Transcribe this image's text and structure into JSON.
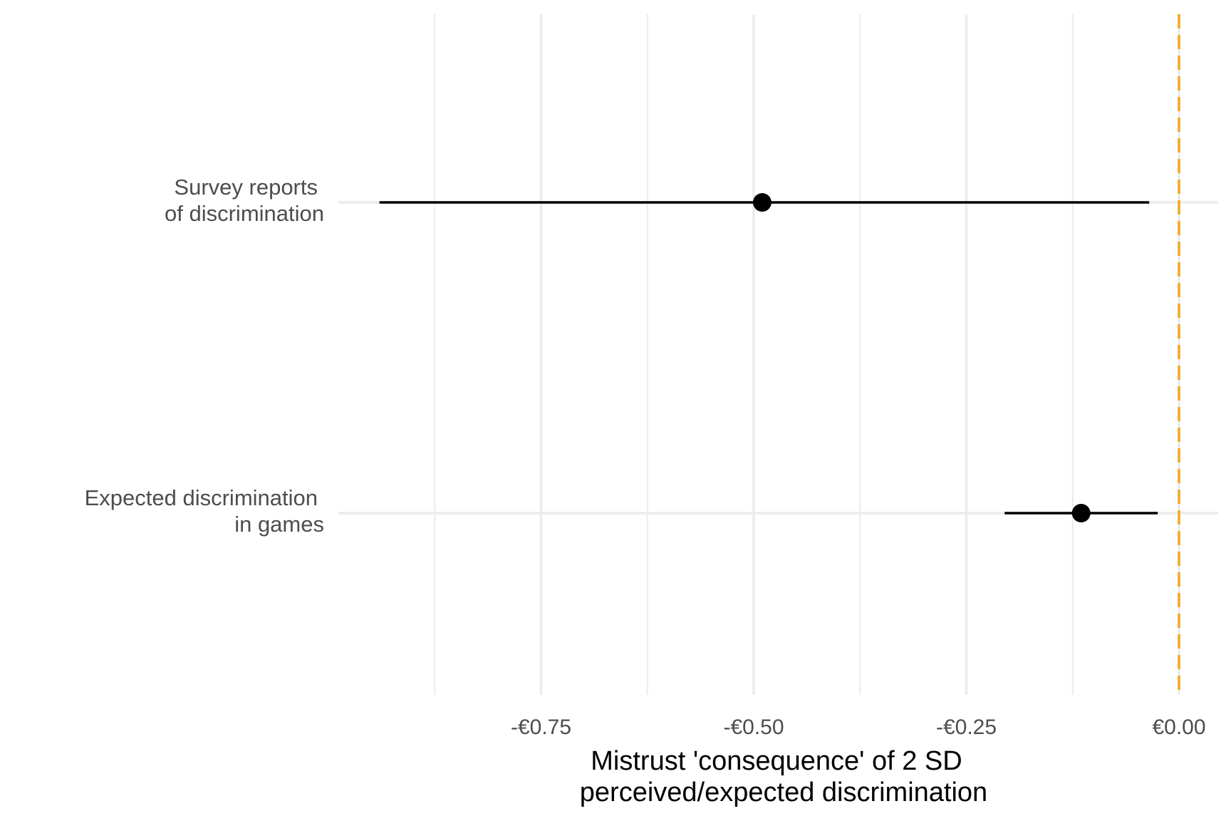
{
  "chart_data": {
    "type": "forest",
    "title": "",
    "xlabel_lines": [
      "Mistrust 'consequence' of 2 SD",
      "perceived/expected discrimination"
    ],
    "xlim": [
      -0.99,
      0.045
    ],
    "x_ticks": [
      {
        "value": -0.75,
        "label": "-€0.75"
      },
      {
        "value": -0.5,
        "label": "-€0.50"
      },
      {
        "value": -0.25,
        "label": "-€0.25"
      },
      {
        "value": 0.0,
        "label": "€0.00"
      }
    ],
    "x_minor_gridlines": [
      -0.875,
      -0.625,
      -0.375,
      -0.125
    ],
    "reference_line": {
      "value": 0.0,
      "color": "#F5A623",
      "style": "dashed"
    },
    "rows": [
      {
        "lines": [
          "Survey reports",
          "of discrimination"
        ],
        "estimate": -0.49,
        "low": -0.94,
        "high": -0.035
      },
      {
        "lines": [
          "Expected discrimination",
          "in games"
        ],
        "estimate": -0.115,
        "low": -0.205,
        "high": -0.025
      }
    ],
    "colors": {
      "point": "#000000",
      "gridline": "#ebebeb"
    },
    "grid": true
  }
}
